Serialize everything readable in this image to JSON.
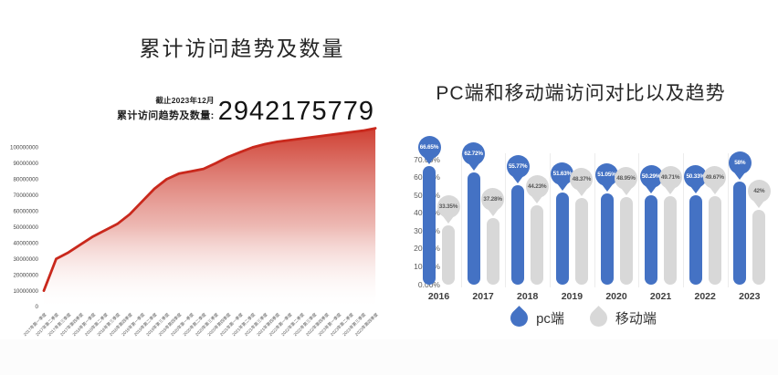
{
  "page": {
    "background": "#ffffff"
  },
  "chart_data": [
    {
      "type": "area",
      "title": "累计访问趋势及数量",
      "stat_note": "截止2023年12月",
      "stat_label": "累计访问趋势及数量:",
      "stat_value": "2942175779",
      "line_color": "#c9281c",
      "area_top_color": "#cb2e20",
      "x_labels": [
        "2017年第一季度",
        "2017年第二季度",
        "2017年第三季度",
        "2017年第四季度",
        "2018年第一季度",
        "2018年第二季度",
        "2018年第三季度",
        "2018年第四季度",
        "2019年第一季度",
        "2019年第二季度",
        "2019年第三季度",
        "2019年第四季度",
        "2020年第一季度",
        "2020年第二季度",
        "2020年第三季度",
        "2020年第四季度",
        "2021年第一季度",
        "2021年第二季度",
        "2021年第三季度",
        "2021年第四季度",
        "2022年第一季度",
        "2022年第二季度",
        "2022年第三季度",
        "2022年第四季度",
        "2023年第一季度",
        "2023年第二季度",
        "2023年第三季度",
        "2023年第四季度"
      ],
      "values": [
        10000000,
        30000000,
        34000000,
        39000000,
        44000000,
        48000000,
        52000000,
        58000000,
        66000000,
        74000000,
        80000000,
        83500000,
        85000000,
        86500000,
        90000000,
        94000000,
        97000000,
        100000000,
        102000000,
        103500000,
        104500000,
        105500000,
        106500000,
        107500000,
        108500000,
        109500000,
        110500000,
        112000000
      ],
      "y_ticks": [
        "0",
        "10000000",
        "20000000",
        "30000000",
        "40000000",
        "50000000",
        "60000000",
        "70000000",
        "80000000",
        "90000000",
        "100000000"
      ],
      "ylim": [
        0,
        115000000
      ],
      "grid": false,
      "legend": null
    },
    {
      "type": "bar",
      "title": "PC端和移动端访问对比以及趋势",
      "categories": [
        "2016",
        "2017",
        "2018",
        "2019",
        "2020",
        "2021",
        "2022",
        "2023"
      ],
      "series": [
        {
          "name": "pc端",
          "color": "#4472c4",
          "label_text_color": "#ffffff",
          "values": [
            66.65,
            62.72,
            55.77,
            51.63,
            51.05,
            50.29,
            50.33,
            58
          ],
          "labels": [
            "66.65%",
            "62.72%",
            "55.77%",
            "51.63%",
            "51.05%",
            "50.29%",
            "50.33%",
            "58%"
          ]
        },
        {
          "name": "移动端",
          "color": "#d8d8d8",
          "label_text_color": "#595959",
          "values": [
            33.35,
            37.28,
            44.23,
            48.37,
            48.95,
            49.71,
            49.67,
            42
          ],
          "labels": [
            "33.35%",
            "37.28%",
            "44.23%",
            "48.37%",
            "48.95%",
            "49.71%",
            "49.67%",
            "42%"
          ]
        }
      ],
      "y_ticks": [
        "0.00%",
        "10.00%",
        "20.00%",
        "30.00%",
        "40.00%",
        "50.00%",
        "60.00%",
        "70.00%"
      ],
      "ylim": [
        0,
        70
      ],
      "grid": false,
      "legend_position": "bottom"
    }
  ]
}
